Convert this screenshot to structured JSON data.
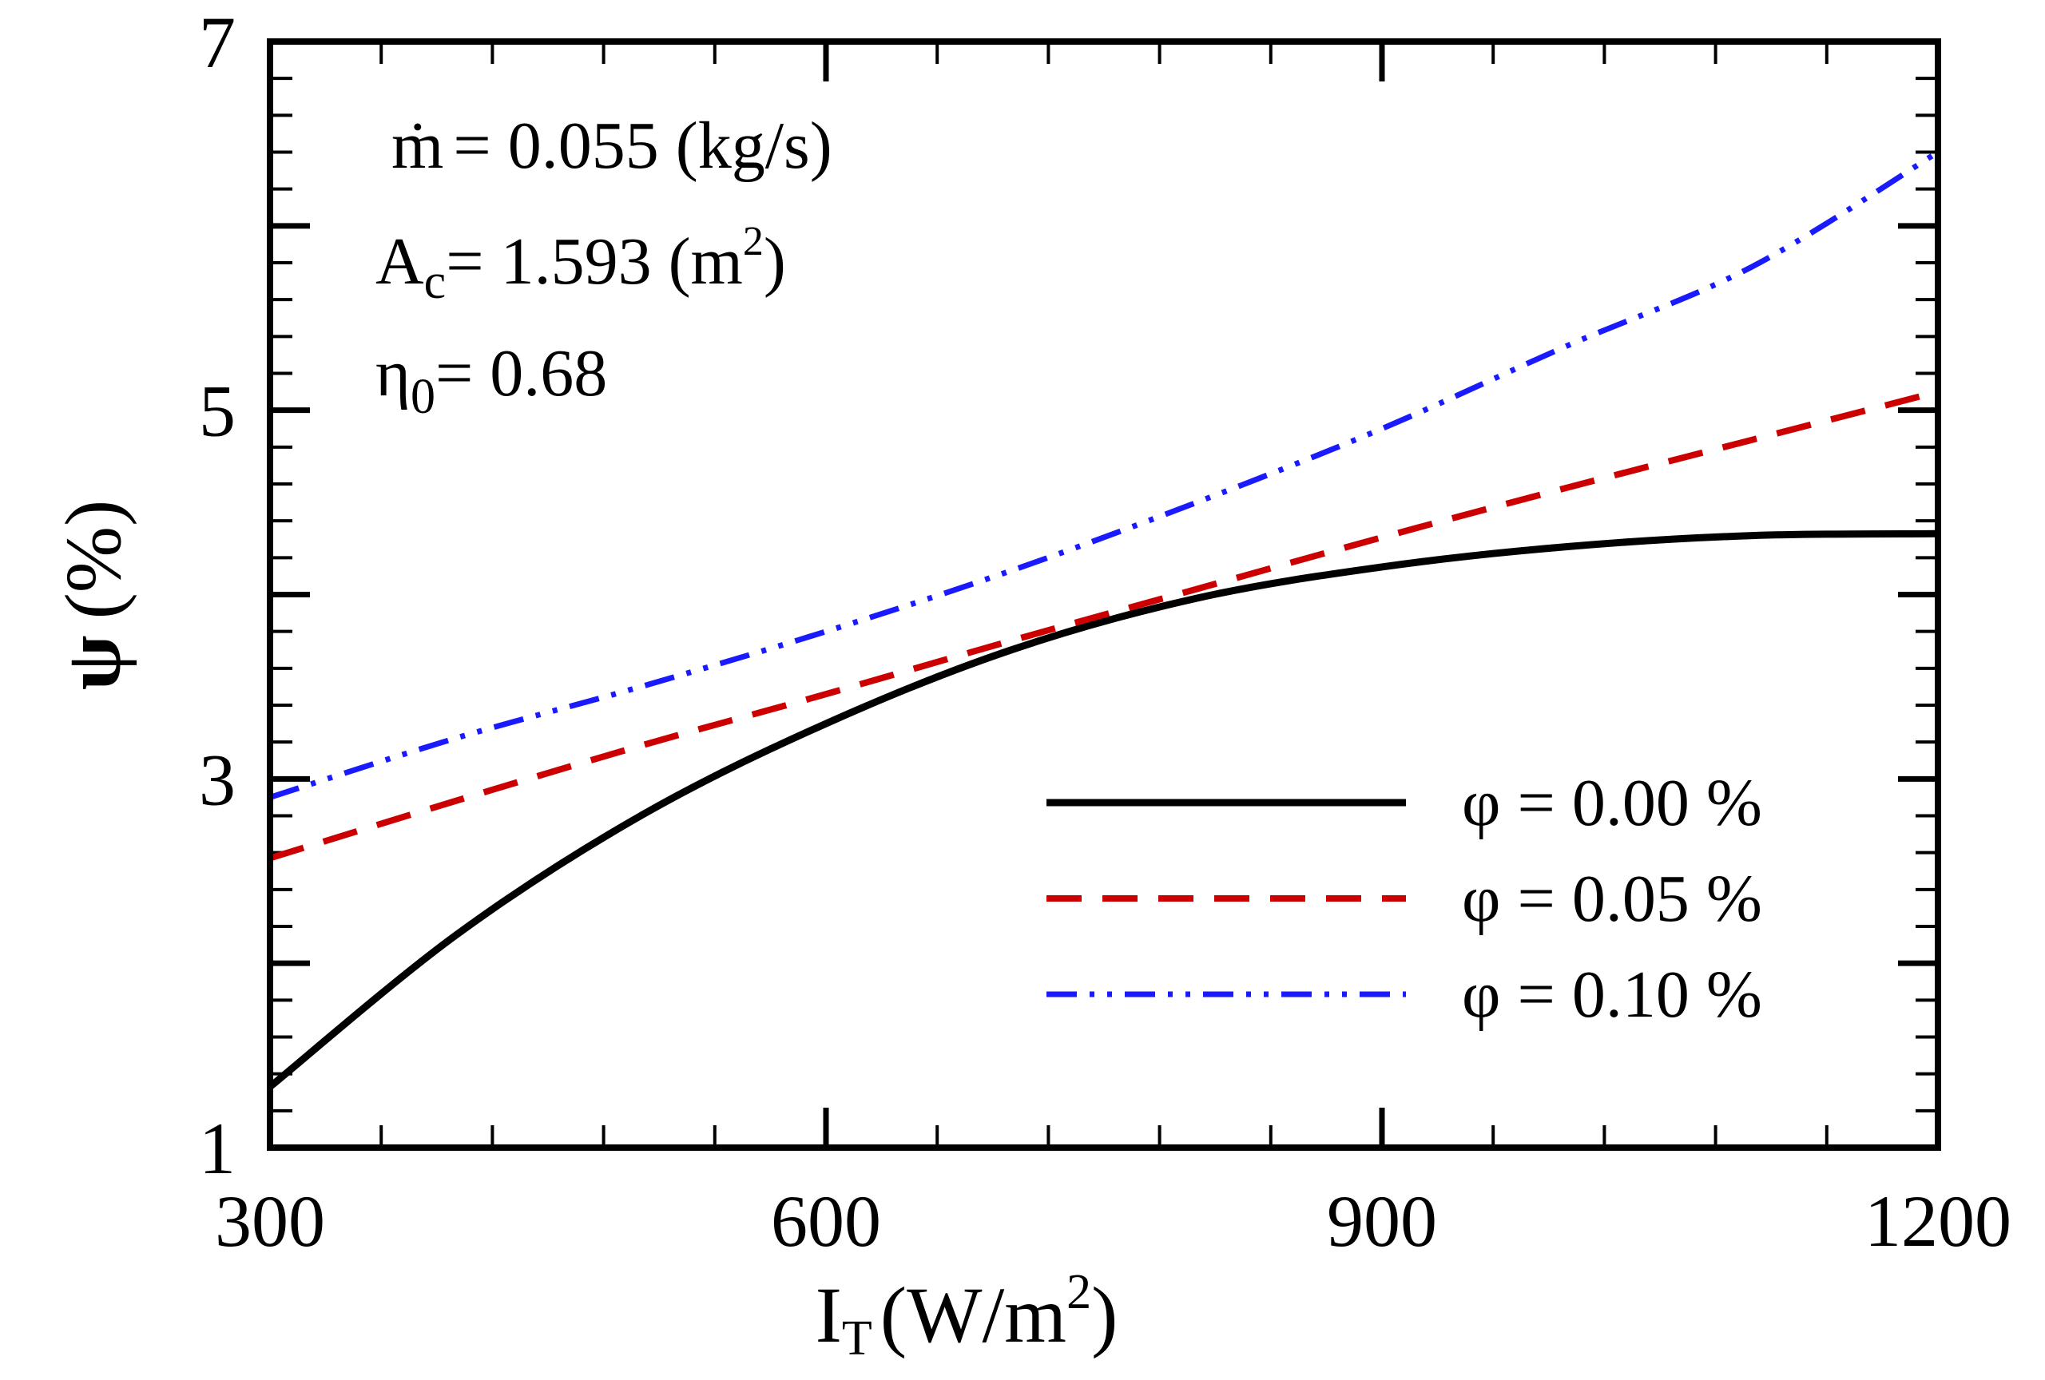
{
  "chart_data": {
    "type": "line",
    "title": "",
    "xlabel": {
      "main": "I",
      "sub": "T",
      "unit_open": "(W/m",
      "unit_sup": "2",
      "unit_close": ")"
    },
    "ylabel": {
      "symbol": "ψ",
      "unit": "(%)"
    },
    "xlim": [
      300,
      1200
    ],
    "ylim": [
      1,
      7
    ],
    "xticks": [
      300,
      600,
      900,
      1200
    ],
    "xtick_labels": [
      "300",
      "600",
      "900",
      "1200"
    ],
    "yticks": [
      1,
      3,
      5,
      7
    ],
    "ytick_labels": [
      "1",
      "3",
      "5",
      "7"
    ],
    "x_minor_step": 60,
    "y_minor_step": 0.2,
    "legend_position": "bottom-right",
    "annotations": {
      "mdot": {
        "symbol": "ṁ",
        "text": "= 0.055 (kg/s)"
      },
      "area": {
        "main": "A",
        "sub": "c",
        "text": "= 1.593 (m",
        "sup": "2",
        "close": ")"
      },
      "eta": {
        "main": "η",
        "sub": "0",
        "text": "= 0.68"
      }
    },
    "x": [
      300,
      400,
      500,
      600,
      700,
      800,
      900,
      1000,
      1100,
      1200
    ],
    "series": [
      {
        "name": "φ = 0.00 %",
        "color": "#000000",
        "style": "solid",
        "values": [
          1.33,
          2.15,
          2.8,
          3.3,
          3.7,
          3.98,
          4.15,
          4.26,
          4.32,
          4.33
        ]
      },
      {
        "name": "φ = 0.05 %",
        "color": "#cc0000",
        "style": "dashed",
        "values": [
          2.57,
          2.88,
          3.18,
          3.46,
          3.75,
          4.03,
          4.31,
          4.58,
          4.84,
          5.1
        ]
      },
      {
        "name": "φ = 0.10 %",
        "color": "#1a1aff",
        "style": "dashdotdot",
        "values": [
          2.9,
          3.22,
          3.5,
          3.8,
          4.13,
          4.5,
          4.9,
          5.35,
          5.78,
          6.4
        ]
      }
    ]
  }
}
